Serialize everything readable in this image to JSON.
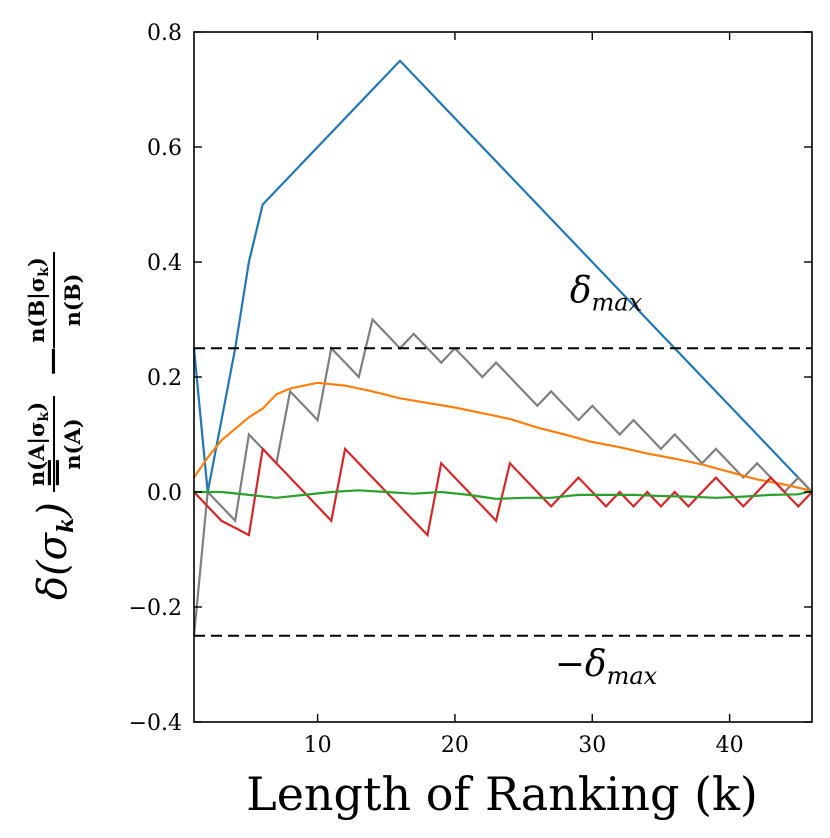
{
  "chart_data": {
    "type": "line",
    "xlabel": "Length of Ranking (k)",
    "ylabel": {
      "lhs": "δ(σ",
      "lhs_sub": "k",
      "lhs_close": ") =",
      "frac_a_num": "n(A|σ",
      "frac_a_num_sub": "k",
      "frac_a_num_close": ")",
      "frac_a_den": "n(A)",
      "minus": "−",
      "frac_b_num": "n(B|σ",
      "frac_b_num_sub": "k",
      "frac_b_num_close": ")",
      "frac_b_den": "n(B)"
    },
    "xlim": [
      1,
      46
    ],
    "ylim": [
      -0.4,
      0.8
    ],
    "xticks": [
      10,
      20,
      30,
      40
    ],
    "yticks": [
      -0.4,
      -0.2,
      0.0,
      0.2,
      0.4,
      0.6,
      0.8
    ],
    "ytick_labels": [
      "−0.4",
      "−0.2",
      "0.0",
      "0.2",
      "0.4",
      "0.6",
      "0.8"
    ],
    "xtick_labels": [
      "10",
      "20",
      "30",
      "40"
    ],
    "annotations": [
      {
        "text": "δ",
        "sub": "max",
        "x": 31,
        "y": 0.33
      },
      {
        "text": "−δ",
        "sub": "max",
        "x": 31,
        "y": -0.32
      }
    ],
    "hlines": [
      {
        "y": 0.25,
        "style": "dashed",
        "color": "#000000"
      },
      {
        "y": -0.25,
        "style": "dashed",
        "color": "#000000"
      }
    ],
    "series": [
      {
        "color": "#1f77b4",
        "x": [
          1,
          2,
          3,
          4,
          5,
          6,
          16,
          46
        ],
        "y": [
          0.25,
          0.0,
          0.125,
          0.25,
          0.4,
          0.5,
          0.75,
          0.0
        ]
      },
      {
        "color": "#7f7f7f",
        "x": [
          1,
          2,
          3,
          4,
          5,
          6,
          7,
          8,
          9,
          10,
          11,
          12,
          13,
          14,
          15,
          16,
          17,
          18,
          19,
          20,
          21,
          22,
          23,
          24,
          25,
          26,
          27,
          28,
          29,
          30,
          31,
          32,
          33,
          34,
          35,
          36,
          37,
          38,
          39,
          40,
          41,
          42,
          43,
          44,
          45,
          46
        ],
        "y": [
          -0.25,
          0.0,
          -0.025,
          -0.05,
          0.1,
          0.075,
          0.05,
          0.175,
          0.15,
          0.125,
          0.25,
          0.225,
          0.2,
          0.3,
          0.275,
          0.25,
          0.275,
          0.25,
          0.225,
          0.25,
          0.225,
          0.2,
          0.225,
          0.2,
          0.175,
          0.15,
          0.175,
          0.15,
          0.125,
          0.15,
          0.125,
          0.1,
          0.125,
          0.1,
          0.075,
          0.1,
          0.075,
          0.05,
          0.075,
          0.05,
          0.025,
          0.05,
          0.025,
          0.0,
          0.025,
          0.0
        ]
      },
      {
        "color": "#ff7f0e",
        "x": [
          1,
          2,
          3,
          4,
          5,
          6,
          7,
          8,
          9,
          10,
          12,
          14,
          16,
          18,
          20,
          22,
          24,
          26,
          28,
          30,
          32,
          34,
          36,
          38,
          40,
          42,
          44,
          46
        ],
        "y": [
          0.025,
          0.06,
          0.09,
          0.11,
          0.13,
          0.145,
          0.17,
          0.18,
          0.185,
          0.19,
          0.185,
          0.175,
          0.163,
          0.155,
          0.147,
          0.137,
          0.127,
          0.112,
          0.1,
          0.087,
          0.078,
          0.067,
          0.058,
          0.048,
          0.035,
          0.022,
          0.013,
          0.002
        ]
      },
      {
        "color": "#d62728",
        "x": [
          1,
          2,
          3,
          4,
          5,
          6,
          7,
          8,
          9,
          10,
          11,
          12,
          13,
          14,
          15,
          16,
          17,
          18,
          19,
          20,
          21,
          22,
          23,
          24,
          25,
          26,
          27,
          28,
          29,
          30,
          31,
          32,
          33,
          34,
          35,
          36,
          37,
          38,
          39,
          40,
          41,
          42,
          43,
          44,
          45,
          46
        ],
        "y": [
          0.0,
          -0.025,
          -0.05,
          -0.0625,
          -0.075,
          0.075,
          0.05,
          0.025,
          0.0,
          -0.025,
          -0.05,
          0.075,
          0.05,
          0.025,
          0.0,
          -0.025,
          -0.05,
          -0.075,
          0.05,
          0.025,
          0.0,
          -0.025,
          -0.05,
          0.05,
          0.025,
          0.0,
          -0.025,
          0.0,
          0.025,
          0.0,
          -0.025,
          0.0,
          -0.025,
          0.0,
          -0.025,
          0.0,
          -0.025,
          0.0,
          0.025,
          0.0,
          -0.025,
          0.0,
          0.025,
          0.0,
          -0.025,
          0.0
        ]
      },
      {
        "color": "#2ca02c",
        "x": [
          1,
          3,
          5,
          7,
          9,
          11,
          13,
          15,
          17,
          19,
          21,
          23,
          25,
          27,
          29,
          31,
          33,
          35,
          37,
          39,
          41,
          43,
          45,
          46
        ],
        "y": [
          0.0,
          0.0,
          -0.005,
          -0.01,
          -0.005,
          0.0,
          0.003,
          0.0,
          -0.003,
          0.0,
          -0.005,
          -0.012,
          -0.01,
          -0.01,
          -0.005,
          -0.005,
          -0.005,
          -0.007,
          -0.008,
          -0.01,
          -0.008,
          -0.005,
          -0.004,
          0.002
        ]
      }
    ],
    "grid": false,
    "legend": "none"
  }
}
